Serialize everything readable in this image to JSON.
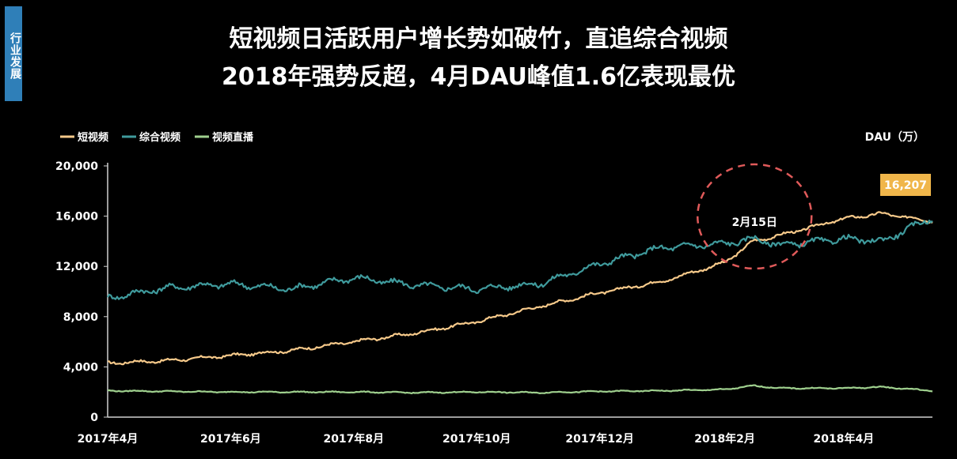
{
  "side_tag": "行业发展",
  "title_line1": "短视频日活跃用户增长势如破竹，直追综合视频",
  "title_line2": "2018年强势反超，4月DAU峰值1.6亿表现最优",
  "colors": {
    "background": "#000000",
    "tag_bg": "#2f7fb8",
    "short_video": "#f6c98a",
    "general_video": "#3f9a9c",
    "live_video": "#9fd08e",
    "peak_box": "#f0b64a",
    "circle": "#e05a5a"
  },
  "chart_data": {
    "type": "line",
    "title": "短视频日活跃用户增长势如破竹，直追综合视频 2018年强势反超，4月DAU峰值1.6亿表现最优",
    "ylabel": "DAU（万）",
    "ylim": [
      0,
      20000
    ],
    "yticks": [
      "20,000",
      "16,000",
      "12,000",
      "8,000",
      "4,000",
      "0"
    ],
    "ytick_values": [
      20000,
      16000,
      12000,
      8000,
      4000,
      0
    ],
    "xticks": [
      "2017年4月",
      "2017年6月",
      "2017年8月",
      "2017年10月",
      "2017年12月",
      "2018年2月",
      "2018年4月"
    ],
    "x_range": [
      "2017-04-01",
      "2018-05-15"
    ],
    "x": [
      "2017-04-01",
      "2017-05-01",
      "2017-06-01",
      "2017-07-01",
      "2017-08-01",
      "2017-09-01",
      "2017-10-01",
      "2017-11-01",
      "2017-12-01",
      "2018-01-01",
      "2018-02-01",
      "2018-02-15",
      "2018-03-01",
      "2018-04-01",
      "2018-04-20",
      "2018-05-15"
    ],
    "legend_position": "top-left",
    "grid": false,
    "series": [
      {
        "name": "短视频",
        "key": "short_video",
        "values": [
          4300,
          4500,
          4900,
          5300,
          6000,
          6700,
          7600,
          8800,
          9900,
          10800,
          12300,
          14000,
          14500,
          15800,
          16207,
          15600
        ]
      },
      {
        "name": "综合视频",
        "key": "general_video",
        "values": [
          9500,
          10300,
          10600,
          10200,
          11100,
          10500,
          10200,
          10600,
          12200,
          13500,
          13800,
          14200,
          13700,
          14200,
          14000,
          15900
        ]
      },
      {
        "name": "视频直播",
        "key": "live_video",
        "values": [
          2100,
          2050,
          2000,
          2000,
          2000,
          1950,
          2000,
          1950,
          2050,
          2100,
          2200,
          2500,
          2300,
          2300,
          2400,
          2100
        ]
      }
    ],
    "annotations": [
      {
        "text": "2月15日",
        "x": "2018-02-15"
      },
      {
        "text": "16,207",
        "x": "2018-04-20",
        "value": 16207
      }
    ]
  }
}
